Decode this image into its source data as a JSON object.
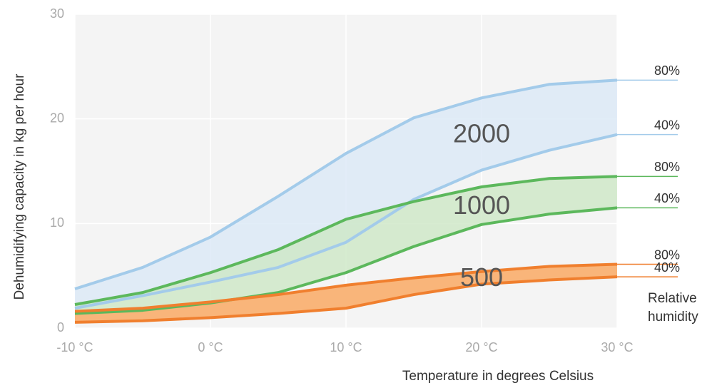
{
  "chart_data": {
    "type": "band",
    "x_label": "Temperature in degrees Celsius",
    "y_label": "Dehumidifying capacity in kg per hour",
    "legend_title": "Relative humidity",
    "x": [
      -10,
      -5,
      0,
      5,
      10,
      15,
      20,
      25,
      30
    ],
    "xlim": [
      -10,
      30
    ],
    "xticks": [
      {
        "value": -10,
        "label": "-10 °C"
      },
      {
        "value": 0,
        "label": "0 °C"
      },
      {
        "value": 10,
        "label": "10 °C"
      },
      {
        "value": 20,
        "label": "20 °C"
      },
      {
        "value": 30,
        "label": "30 °C"
      }
    ],
    "ylim": [
      0,
      30
    ],
    "yticks": [
      0,
      10,
      20,
      30
    ],
    "grid": true,
    "series": [
      {
        "name": "2000",
        "color": "#a3cbea",
        "fill": "#dbe8f6",
        "lines": [
          {
            "label": "80%",
            "values": [
              3.75,
              5.8,
              8.7,
              12.6,
              16.7,
              20.1,
              22,
              23.3,
              23.7
            ]
          },
          {
            "label": "40%",
            "values": [
              1.9,
              3.1,
              4.4,
              5.8,
              8.2,
              12.3,
              15.1,
              17,
              18.5
            ]
          }
        ]
      },
      {
        "name": "1000",
        "color": "#5cb85c",
        "fill": "#cde7c6",
        "lines": [
          {
            "label": "80%",
            "values": [
              2.25,
              3.4,
              5.3,
              7.5,
              10.4,
              12.1,
              13.5,
              14.3,
              14.5
            ]
          },
          {
            "label": "40%",
            "values": [
              1.4,
              1.7,
              2.4,
              3.4,
              5.3,
              7.8,
              9.9,
              10.9,
              11.5
            ]
          }
        ]
      },
      {
        "name": "500",
        "color": "#f07f2e",
        "fill": "#f9b57a",
        "lines": [
          {
            "label": "80%",
            "values": [
              1.6,
              1.9,
              2.5,
              3.2,
              4.1,
              4.8,
              5.4,
              5.9,
              6.1
            ]
          },
          {
            "label": "40%",
            "values": [
              0.55,
              0.7,
              1.0,
              1.4,
              1.9,
              3.2,
              4.2,
              4.6,
              4.9
            ]
          }
        ]
      }
    ]
  }
}
